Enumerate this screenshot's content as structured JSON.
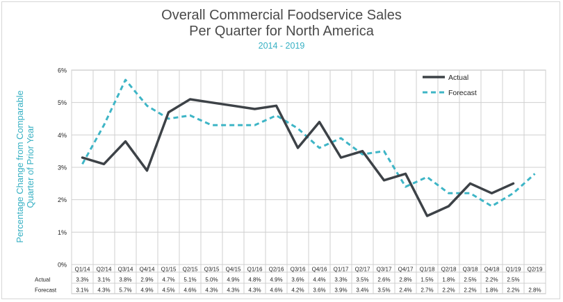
{
  "chart_data": {
    "type": "line",
    "title_line1": "Overall Commercial Foodservice Sales",
    "title_line2": "Per Quarter for North America",
    "subtitle": "2014 - 2019",
    "ylabel_line1": "Percentage Change from Comparable",
    "ylabel_line2": "Quarter of Prior Year",
    "ylim": [
      0,
      6
    ],
    "yticks": [
      "0%",
      "1%",
      "2%",
      "3%",
      "4%",
      "5%",
      "6%"
    ],
    "categories": [
      "Q1/14",
      "Q2/14",
      "Q3/14",
      "Q4/14",
      "Q1/15",
      "Q2/15",
      "Q3/15",
      "Q4/15",
      "Q1/16",
      "Q2/16",
      "Q3/16",
      "Q4/16",
      "Q1/17",
      "Q2/17",
      "Q3/17",
      "Q4/17",
      "Q1/18",
      "Q2/18",
      "Q3/18",
      "Q4/18",
      "Q1/19",
      "Q2/19"
    ],
    "legend_position": "top-right",
    "series": [
      {
        "name": "Actual",
        "color": "#3d4247",
        "style": "solid",
        "values": [
          3.3,
          3.1,
          3.8,
          2.9,
          4.7,
          5.1,
          5.0,
          4.9,
          4.8,
          4.9,
          3.6,
          4.4,
          3.3,
          3.5,
          2.6,
          2.8,
          1.5,
          1.8,
          2.5,
          2.2,
          2.5,
          null
        ],
        "labels": [
          "3.3%",
          "3.1%",
          "3.8%",
          "2.9%",
          "4.7%",
          "5.1%",
          "5.0%",
          "4.9%",
          "4.8%",
          "4.9%",
          "3.6%",
          "4.4%",
          "3.3%",
          "3.5%",
          "2.6%",
          "2.8%",
          "1.5%",
          "1.8%",
          "2.5%",
          "2.2%",
          "2.5%",
          ""
        ]
      },
      {
        "name": "Forecast",
        "color": "#3eb5c6",
        "style": "dashed",
        "values": [
          3.1,
          4.3,
          5.7,
          4.9,
          4.5,
          4.6,
          4.3,
          4.3,
          4.3,
          4.6,
          4.2,
          3.6,
          3.9,
          3.4,
          3.5,
          2.4,
          2.7,
          2.2,
          2.2,
          1.8,
          2.2,
          2.8
        ],
        "labels": [
          "3.1%",
          "4.3%",
          "5.7%",
          "4.9%",
          "4.5%",
          "4.6%",
          "4.3%",
          "4.3%",
          "4.3%",
          "4.6%",
          "4.2%",
          "3.6%",
          "3.9%",
          "3.4%",
          "3.5%",
          "2.4%",
          "2.7%",
          "2.2%",
          "2.2%",
          "1.8%",
          "2.2%",
          "2.8%"
        ]
      }
    ],
    "grid": true
  }
}
